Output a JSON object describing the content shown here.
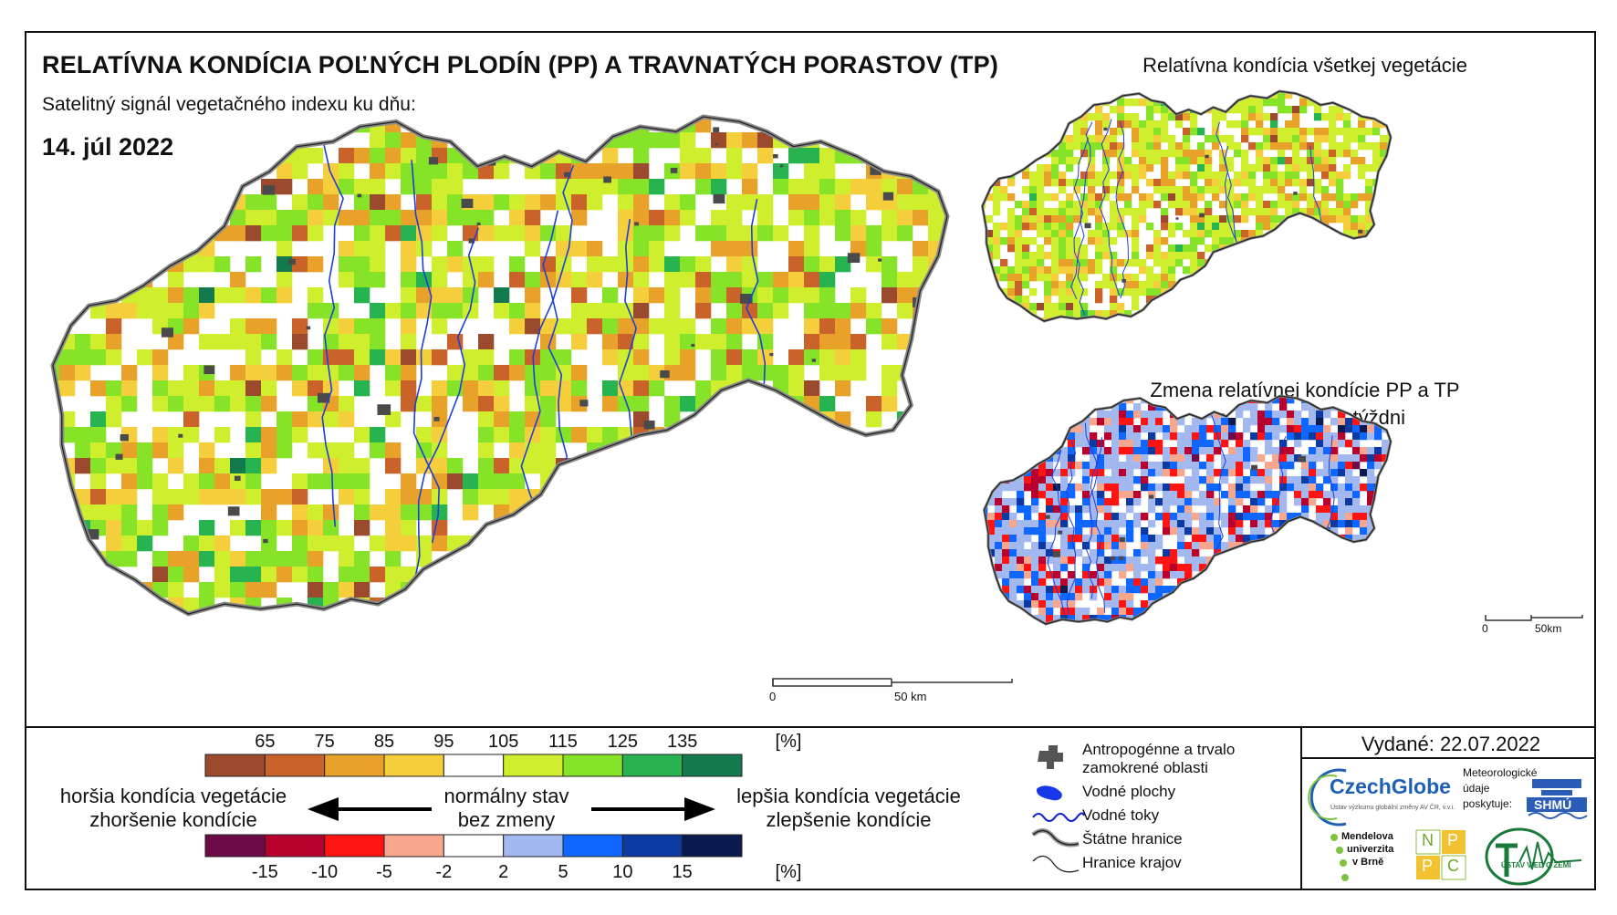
{
  "title": "RELATÍVNA KONDÍCIA POĽNÝCH PLODÍN (PP) A TRAVNATÝCH PORASTOV (TP)",
  "subtitle": "Satelitný signál vegetačného indexu ku dňu:",
  "date": "14. júl 2022",
  "inset1_title": "Relatívna kondícia všetkej vegetácie",
  "inset2_title_line1": "Zmena relatívnej kondície PP a TP",
  "inset2_title_line2": "oproti minulému týždni",
  "main_scale": {
    "zero": "0",
    "end": "50 km"
  },
  "inset_scale": {
    "zero": "0",
    "end": "50km"
  },
  "condition_legend": {
    "ticks": [
      "65",
      "75",
      "85",
      "95",
      "105",
      "115",
      "125",
      "135"
    ],
    "unit": "[%]",
    "colors": [
      "#9c4a2d",
      "#c9632a",
      "#e8a22a",
      "#f5cf3b",
      "#ffffff",
      "#cfee2e",
      "#86e328",
      "#27b34f",
      "#137a4e"
    ]
  },
  "change_legend": {
    "ticks": [
      "-15",
      "-10",
      "-5",
      "-2",
      "2",
      "5",
      "10",
      "15"
    ],
    "unit": "[%]",
    "colors": [
      "#6d0a48",
      "#b8002e",
      "#ff1414",
      "#f7a78d",
      "#ffffff",
      "#a4b8f0",
      "#0f67ff",
      "#0c3aa0",
      "#0b1a4f"
    ]
  },
  "labels": {
    "worse_1": "horšia kondícia vegetácie",
    "worse_2": "zhoršenie kondície",
    "normal_1": "normálny stav",
    "normal_2": "bez zmeny",
    "better_1": "lepšia kondícia vegetácie",
    "better_2": "zlepšenie kondície"
  },
  "map_legend": {
    "anthropogenic": "Antropogénne a trvalo zamokrené oblasti",
    "water_bodies": "Vodné plochy",
    "rivers": "Vodné toky",
    "state_border": "Štátne hranice",
    "region_border": "Hranice krajov"
  },
  "issued": "Vydané: 22.07.2022",
  "logos": {
    "czechglobe": "CzechGlobe",
    "czechglobe_sub": "Ústav výzkumu globální změny AV ČR, v.v.i.",
    "meteo_1": "Meteorologické",
    "meteo_2": "údaje",
    "meteo_3": "poskytuje:",
    "shmu": "SHMÚ",
    "mendel_1": "Mendelova",
    "mendel_2": "univerzita",
    "mendel_3": "v Brně",
    "nppc": [
      "N",
      "P",
      "P",
      "C"
    ],
    "uvz": "ÚSTAV VIED O ZEMI"
  }
}
